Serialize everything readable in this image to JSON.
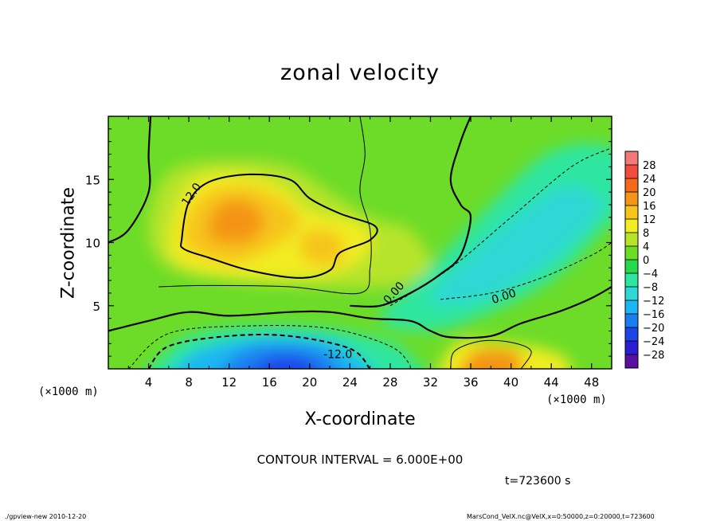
{
  "footer": {
    "left": "./gpview-new   2010-12-20",
    "right": "MarsCond_VelX.nc@VelX,x=0:50000,z=0:20000,t=723600"
  },
  "chart_data": {
    "type": "heatmap",
    "title": "zonal velocity",
    "xlabel": "X-coordinate",
    "ylabel": "Z-coordinate",
    "x_unit": "(×1000 m)",
    "y_unit": "(×1000 m)",
    "xlim": [
      0,
      50
    ],
    "ylim": [
      0,
      20
    ],
    "x_ticks": [
      4,
      8,
      12,
      16,
      20,
      24,
      28,
      32,
      36,
      40,
      44,
      48
    ],
    "y_ticks": [
      5,
      10,
      15
    ],
    "contour_interval_text": "CONTOUR INTERVAL = 6.000E+00",
    "time_text": "t=723600 s",
    "contour_labels": [
      "12.0",
      "0.00",
      "0.00",
      "-12.0"
    ],
    "colorbar": {
      "levels": [
        -28,
        -24,
        -20,
        -16,
        -12,
        -8,
        -4,
        0,
        4,
        8,
        12,
        16,
        20,
        24,
        28
      ],
      "colors": [
        "#5a0fa0",
        "#2a1fd0",
        "#1c46e8",
        "#1a7ef0",
        "#1eb6f2",
        "#2fd8d4",
        "#2ee6a0",
        "#28d84c",
        "#6cdc28",
        "#b6e42a",
        "#f2ec20",
        "#f6c41a",
        "#f49418",
        "#f46a1a",
        "#f24a3c",
        "#f47878"
      ]
    },
    "features": [
      {
        "name": "upper positive jet",
        "x_center": 14,
        "z_center": 11,
        "peak": 20
      },
      {
        "name": "near-surface negative jet",
        "x_center": 20,
        "z_center": 1,
        "peak": -20
      },
      {
        "name": "negative return flow band",
        "x_center": 40,
        "z_center": 11,
        "peak": -8
      },
      {
        "name": "near-surface positive jet",
        "x_center": 38,
        "z_center": 1,
        "peak": 16
      }
    ]
  }
}
